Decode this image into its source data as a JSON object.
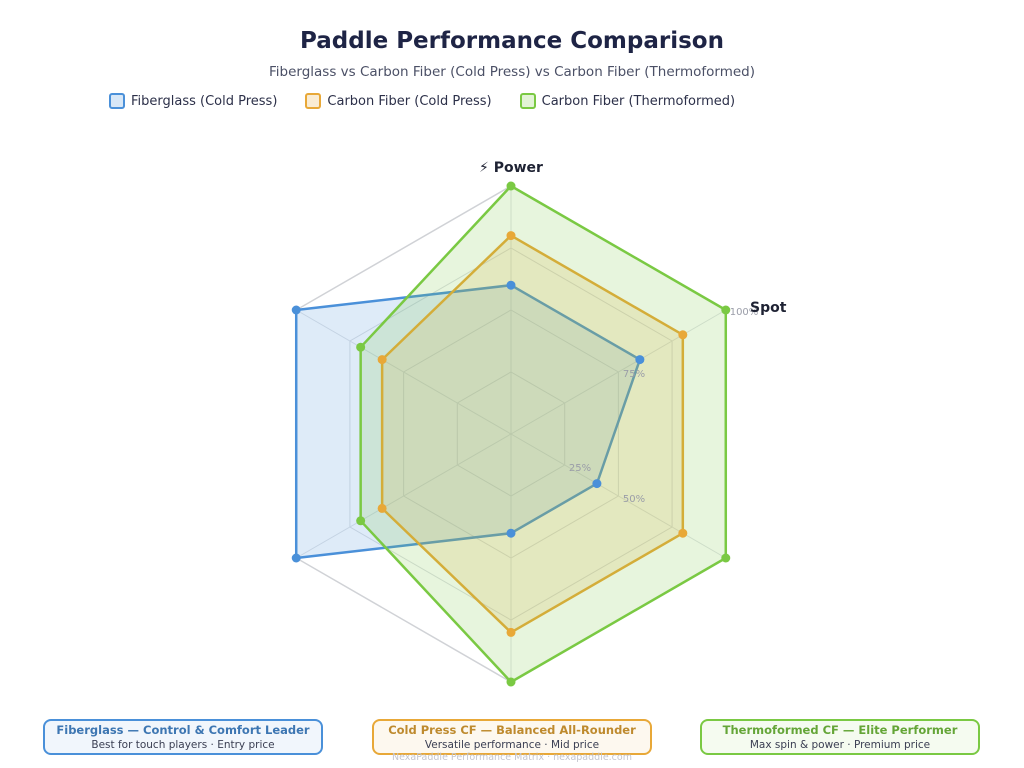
{
  "page": {
    "title": "Paddle Performance Comparison",
    "subtitle": "Fiberglass vs Carbon Fiber (Cold Press) vs Carbon Fiber (Thermoformed)",
    "footer_note": "NexaPaddle Performance Matrix · nexapaddle.com"
  },
  "legend": [
    {
      "label": "Fiberglass (Cold Press)",
      "color": "#4a90d9"
    },
    {
      "label": "Carbon Fiber (Cold Press)",
      "color": "#e8a838"
    },
    {
      "label": "Carbon Fiber (Thermoformed)",
      "color": "#7ac943"
    }
  ],
  "cards": [
    {
      "title": "Fiberglass — Control & Comfort Leader",
      "subtitle": "Best for touch players · Entry price",
      "color": "#4a90d9"
    },
    {
      "title": "Cold Press CF — Balanced All-Rounder",
      "subtitle": "Versatile performance · Mid price",
      "color": "#e8a838"
    },
    {
      "title": "Thermoformed CF — Elite Performer",
      "subtitle": "Max spin & power · Premium price",
      "color": "#7ac943"
    }
  ],
  "chart_data": {
    "type": "radar",
    "title": "Paddle Performance Comparison",
    "axes": [
      {
        "label": "⚡ Power",
        "visible": true
      },
      {
        "label": "Spot",
        "visible": true
      },
      {
        "label": "",
        "visible": false
      },
      {
        "label": "",
        "visible": false
      },
      {
        "label": "",
        "visible": false
      },
      {
        "label": "",
        "visible": false
      }
    ],
    "rings": [
      25,
      50,
      75,
      100
    ],
    "ring_labels": [
      "25%",
      "50%",
      "75%",
      "100%"
    ],
    "range": [
      0,
      100
    ],
    "series": [
      {
        "name": "Fiberglass (Cold Press)",
        "color": "#4a90d9",
        "values": [
          60,
          60,
          40,
          40,
          100,
          100
        ]
      },
      {
        "name": "Carbon Fiber (Cold Press)",
        "color": "#e8a838",
        "values": [
          80,
          80,
          80,
          80,
          60,
          60
        ]
      },
      {
        "name": "Carbon Fiber (Thermoformed)",
        "color": "#7ac943",
        "values": [
          100,
          100,
          100,
          100,
          70,
          70
        ]
      }
    ]
  }
}
